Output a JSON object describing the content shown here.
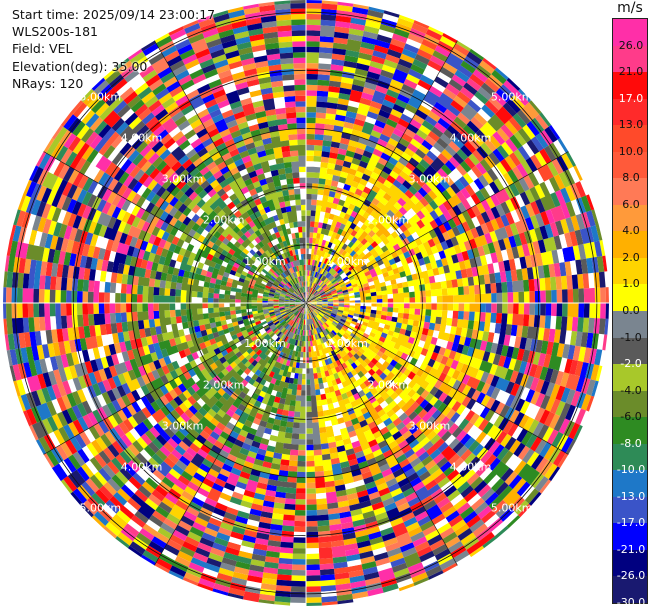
{
  "info": {
    "start_time": "Start time: 2025/09/14 23:00:17",
    "instrument": "WLS200s-181",
    "field": "Field: VEL",
    "elevation": "Elevation(deg): 35.00",
    "nrays": "NRays: 120"
  },
  "colorbar": {
    "unit": "m/s",
    "ticks": [
      "26.0",
      "21.0",
      "17.0",
      "13.0",
      "10.0",
      "8.0",
      "6.0",
      "4.0",
      "2.0",
      "1.0",
      "0.0",
      "-1.0",
      "-2.0",
      "-4.0",
      "-6.0",
      "-8.0",
      "-10.0",
      "-13.0",
      "-17.0",
      "-21.0",
      "-26.0",
      "-30.0"
    ],
    "segments": [
      "#ff2fa8",
      "#ff3b8a",
      "#ff0a0a",
      "#ff2a2a",
      "#ff4a2a",
      "#ff5a3a",
      "#ff7a56",
      "#ff9a3a",
      "#ffb000",
      "#ffd400",
      "#ffff00",
      "#7a8590",
      "#5a5a5a",
      "#a8c82a",
      "#6b8c2a",
      "#2e8b22",
      "#2e8b57",
      "#1e78c8",
      "#3a54c8",
      "#0000ff",
      "#000080",
      "#191970"
    ]
  },
  "chart_data": {
    "type": "heatmap",
    "projection": "polar-ppi",
    "field": "VEL",
    "unit": "m/s",
    "nrays": 120,
    "elevation_deg": 35.0,
    "range_ring_labels_km": [
      "1.00km",
      "2.00km",
      "3.00km",
      "4.00km",
      "5.00km"
    ],
    "range_rings_km": [
      1,
      2,
      3,
      4,
      5
    ],
    "max_range_km": 5.0,
    "color_range": [
      -30,
      26
    ],
    "pattern": {
      "inner_core": "mixed grey/green/yellow velocities near 0 m/s within ~0.7 km",
      "east_sector_inner": "yellow/orange positive velocities (about 2 to 6 m/s) inside ~2.5 km",
      "west_sector_inner": "green negative velocities (about -2 to -8 m/s) inside ~2 km",
      "outer": "noise with all colors beyond ~2.5 km"
    }
  }
}
